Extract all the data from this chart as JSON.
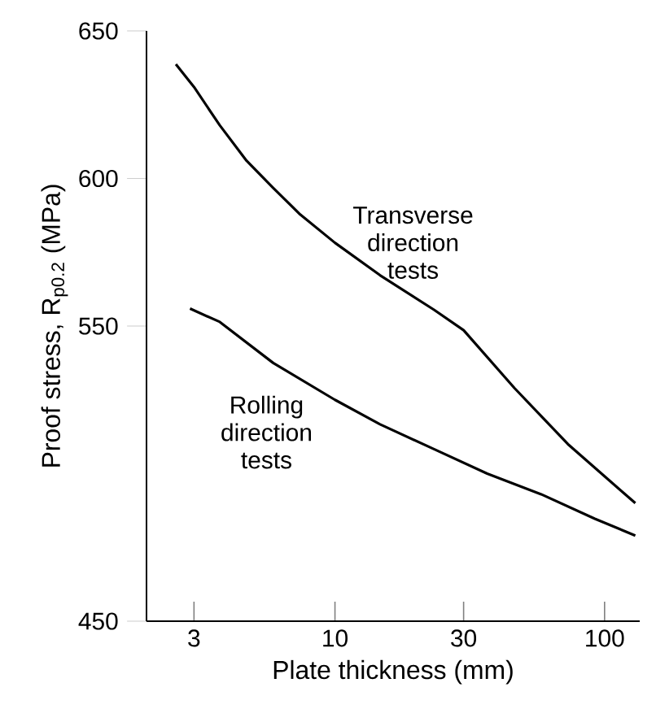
{
  "chart_data": {
    "type": "line",
    "xlabel": "Plate thickness (mm)",
    "ylabel": "Proof stress,  R$_{p0.2}$ (MPa)",
    "log": "x",
    "xlim": [
      2,
      135
    ],
    "ylim": [
      450,
      650
    ],
    "xticks": [
      3,
      10,
      30,
      100
    ],
    "yticks": [
      450,
      550,
      600,
      650
    ],
    "line_style": "solid",
    "series": [
      {
        "name": "Transverse direction tests",
        "color": "#000000",
        "x": [
          2.57,
          3,
          3.74,
          4.7,
          5.9,
          7.43,
          10,
          14.7,
          23.3,
          30,
          46.3,
          73.1,
          130
        ],
        "values": [
          638.7,
          631,
          618,
          606,
          596.8,
          587.8,
          578.2,
          567.2,
          555.5,
          548.6,
          529,
          510,
          490
        ]
      },
      {
        "name": "Rolling direction tests",
        "color": "#000000",
        "x": [
          2.9,
          3.74,
          5.9,
          10,
          14.7,
          23.3,
          36.7,
          58.2,
          92,
          130
        ],
        "values": [
          555.9,
          551.4,
          537.5,
          525,
          516.7,
          508.3,
          500,
          493,
          484.7,
          479
        ]
      }
    ]
  }
}
